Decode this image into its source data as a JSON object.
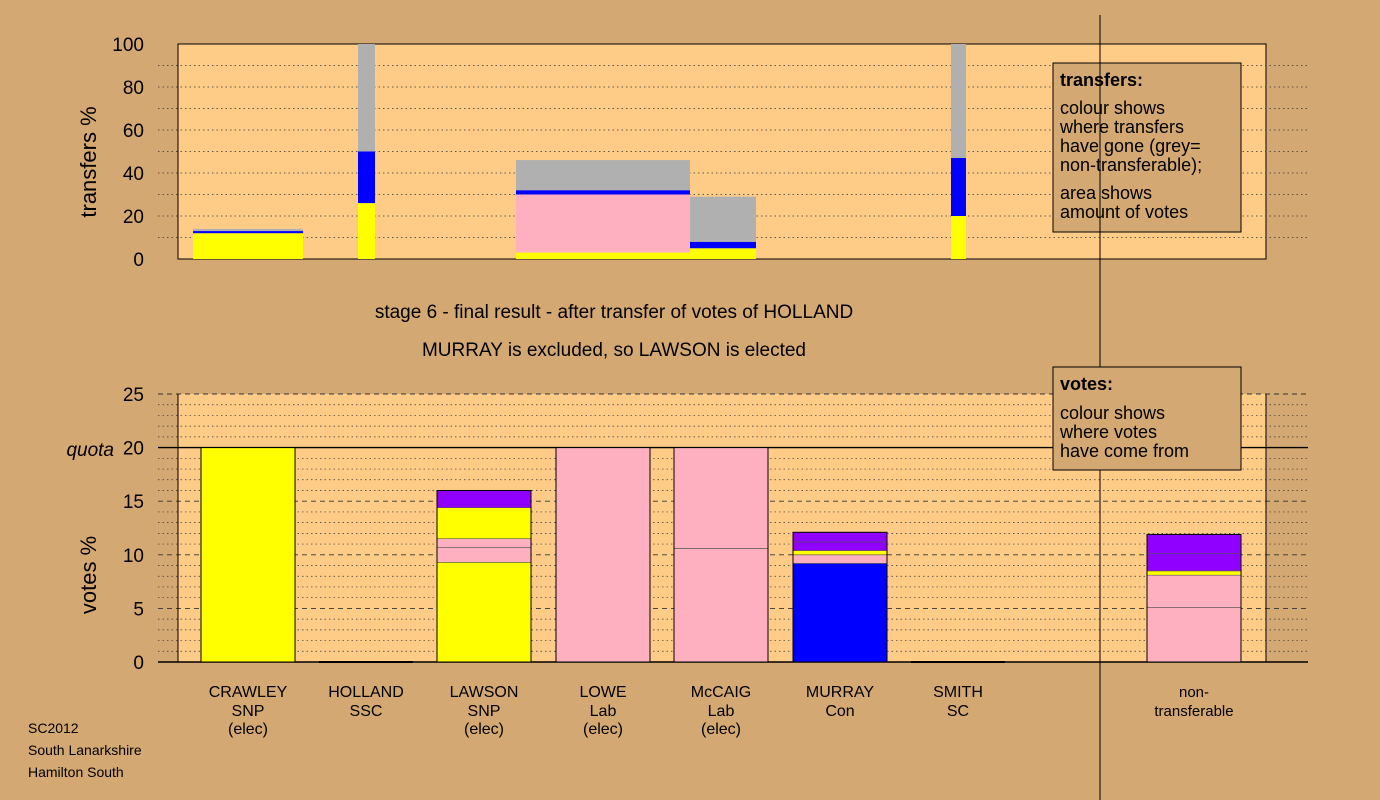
{
  "colors": {
    "page_bg": "#d4a872",
    "plot_bg": "#ffcc88",
    "SNP": "#ffff00",
    "Lab": "#ffb0c0",
    "Con": "#0000ff",
    "purple": "#9000ff",
    "nontransferable": "#b0b0b0"
  },
  "headline": {
    "line1": "stage 6 - final result - after transfer of votes of HOLLAND",
    "line2": "MURRAY is excluded, so LAWSON is elected"
  },
  "footer": {
    "line1": "SC2012",
    "line2": "South Lanarkshire",
    "line3": "Hamilton South"
  },
  "transfers_legend": {
    "title": "transfers:",
    "lines1": [
      "colour shows",
      "where transfers",
      "have gone (grey=",
      "non-transferable);"
    ],
    "lines2": [
      "area shows",
      "amount of votes"
    ]
  },
  "votes_legend": {
    "title": "votes:",
    "lines": [
      "colour shows",
      "where votes",
      "have come from"
    ]
  },
  "chart_data": [
    {
      "type": "bar",
      "name": "transfers",
      "ylabel": "transfers %",
      "ylim": [
        0,
        100
      ],
      "yticks": [
        0,
        20,
        40,
        60,
        80,
        100
      ],
      "bars": [
        {
          "category": "CRAWLEY",
          "span": 1.0,
          "segments": [
            {
              "from": 0,
              "to": 12,
              "color": "SNP"
            },
            {
              "from": 12,
              "to": 13,
              "color": "Con"
            },
            {
              "from": 13,
              "to": 14,
              "color": "nontransferable"
            }
          ]
        },
        {
          "category": "HOLLAND",
          "span": 0.15,
          "segments": [
            {
              "from": 0,
              "to": 26,
              "color": "SNP"
            },
            {
              "from": 26,
              "to": 50,
              "color": "Con"
            },
            {
              "from": 50,
              "to": 100,
              "color": "nontransferable"
            }
          ]
        },
        {
          "category": "LOWE",
          "span": 1.5,
          "segments": [
            {
              "from": 0,
              "to": 3,
              "color": "SNP"
            },
            {
              "from": 3,
              "to": 30,
              "color": "Lab"
            },
            {
              "from": 30,
              "to": 32,
              "color": "Con"
            },
            {
              "from": 32,
              "to": 46,
              "color": "nontransferable"
            }
          ]
        },
        {
          "category": "McCAIG",
          "span": 0.6,
          "segments": [
            {
              "from": 0,
              "to": 5,
              "color": "SNP"
            },
            {
              "from": 5,
              "to": 8,
              "color": "Con"
            },
            {
              "from": 8,
              "to": 29,
              "color": "nontransferable"
            }
          ]
        },
        {
          "category": "SMITH",
          "span": 0.15,
          "segments": [
            {
              "from": 0,
              "to": 20,
              "color": "SNP"
            },
            {
              "from": 20,
              "to": 47,
              "color": "Con"
            },
            {
              "from": 47,
              "to": 100,
              "color": "nontransferable"
            }
          ]
        }
      ]
    },
    {
      "type": "bar",
      "name": "votes",
      "ylabel": "votes %",
      "ylim": [
        0,
        25
      ],
      "yticks": [
        0,
        5,
        10,
        15,
        20,
        25
      ],
      "quota": 20,
      "quota_label": "quota",
      "categories": [
        {
          "name": "CRAWLEY",
          "party": "SNP",
          "status": "(elec)"
        },
        {
          "name": "HOLLAND",
          "party": "SSC",
          "status": ""
        },
        {
          "name": "LAWSON",
          "party": "SNP",
          "status": "(elec)"
        },
        {
          "name": "LOWE",
          "party": "Lab",
          "status": "(elec)"
        },
        {
          "name": "McCAIG",
          "party": "Lab",
          "status": "(elec)"
        },
        {
          "name": "MURRAY",
          "party": "Con",
          "status": ""
        },
        {
          "name": "SMITH",
          "party": "SC",
          "status": ""
        },
        {
          "name": "non-",
          "party": "transferable",
          "status": ""
        }
      ],
      "bars": [
        {
          "category": "CRAWLEY",
          "total": 20,
          "segments": [
            {
              "from": 0,
              "to": 20,
              "color": "SNP"
            }
          ]
        },
        {
          "category": "HOLLAND",
          "total": 0,
          "segments": []
        },
        {
          "category": "LAWSON",
          "total": 16,
          "segments": [
            {
              "from": 0,
              "to": 9.3,
              "color": "SNP"
            },
            {
              "from": 9.3,
              "to": 10.7,
              "color": "Lab"
            },
            {
              "from": 10.7,
              "to": 11.5,
              "color": "Lab"
            },
            {
              "from": 11.5,
              "to": 14.4,
              "color": "SNP"
            },
            {
              "from": 14.4,
              "to": 16,
              "color": "purple"
            }
          ]
        },
        {
          "category": "LOWE",
          "total": 20,
          "segments": [
            {
              "from": 0,
              "to": 20,
              "color": "Lab"
            }
          ]
        },
        {
          "category": "McCAIG",
          "total": 20,
          "segments": [
            {
              "from": 0,
              "to": 10.6,
              "color": "Lab"
            },
            {
              "from": 10.6,
              "to": 20,
              "color": "Lab"
            }
          ]
        },
        {
          "category": "MURRAY",
          "total": 12.1,
          "segments": [
            {
              "from": 0,
              "to": 9.2,
              "color": "Con"
            },
            {
              "from": 9.2,
              "to": 10.0,
              "color": "Lab"
            },
            {
              "from": 10.0,
              "to": 10.4,
              "color": "SNP"
            },
            {
              "from": 10.4,
              "to": 11.2,
              "color": "purple"
            },
            {
              "from": 11.2,
              "to": 12.1,
              "color": "purple"
            }
          ]
        },
        {
          "category": "SMITH",
          "total": 0,
          "segments": []
        },
        {
          "category": "non-",
          "total": 11.9,
          "segments": [
            {
              "from": 0,
              "to": 5.1,
              "color": "Lab"
            },
            {
              "from": 5.1,
              "to": 8.1,
              "color": "Lab"
            },
            {
              "from": 8.1,
              "to": 8.5,
              "color": "SNP"
            },
            {
              "from": 8.5,
              "to": 10.1,
              "color": "purple"
            },
            {
              "from": 10.1,
              "to": 11.9,
              "color": "purple"
            }
          ]
        }
      ]
    }
  ]
}
